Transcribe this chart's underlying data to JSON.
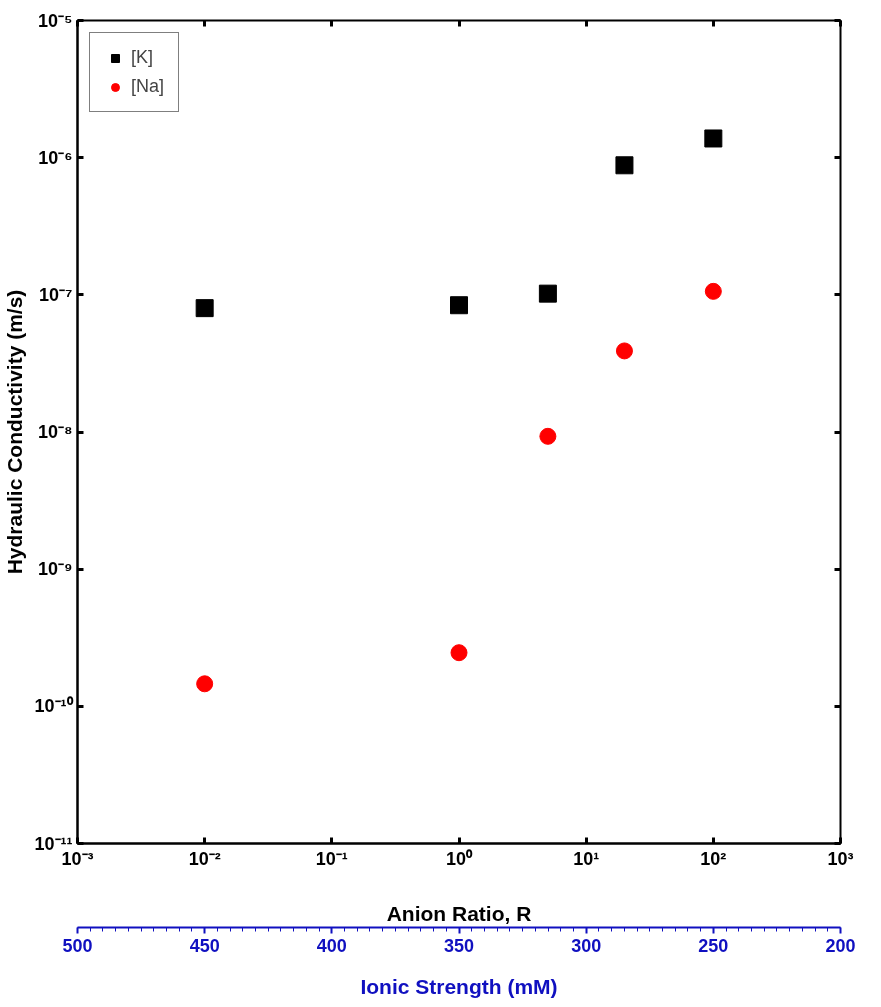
{
  "chart_data": {
    "type": "scatter",
    "xlabel": "Anion Ratio, R",
    "ylabel": "Hydraulic Conductivity (m/s)",
    "x2label": "Ionic Strength (mM)",
    "log": "xy",
    "grid": false,
    "legend": "top left",
    "xlim": [
      0.001,
      1000
    ],
    "ylim": [
      1e-11,
      1e-05
    ],
    "xticks": [
      {
        "value": 0.001,
        "label": "10⁻³"
      },
      {
        "value": 0.01,
        "label": "10⁻²"
      },
      {
        "value": 0.1,
        "label": "10⁻¹"
      },
      {
        "value": 1,
        "label": "10⁰"
      },
      {
        "value": 10,
        "label": "10¹"
      },
      {
        "value": 100,
        "label": "10²"
      },
      {
        "value": 1000,
        "label": "10³"
      }
    ],
    "yticks": [
      {
        "value": 1e-11,
        "label": "10⁻¹¹"
      },
      {
        "value": 1e-10,
        "label": "10⁻¹⁰"
      },
      {
        "value": 1e-09,
        "label": "10⁻⁹"
      },
      {
        "value": 1e-08,
        "label": "10⁻⁸"
      },
      {
        "value": 1e-07,
        "label": "10⁻⁷"
      },
      {
        "value": 1e-06,
        "label": "10⁻⁶"
      },
      {
        "value": 1e-05,
        "label": "10⁻⁵"
      }
    ],
    "x2lim": [
      500,
      200
    ],
    "x2ticks": [
      500,
      450,
      400,
      350,
      300,
      250,
      200
    ],
    "x": [
      0.01,
      1,
      5,
      20,
      100
    ],
    "series": [
      {
        "name": "[K]",
        "color": "#000000",
        "marker": "square",
        "values": [
          8e-08,
          8.4e-08,
          1.02e-07,
          8.8e-07,
          1.38e-06
        ]
      },
      {
        "name": "[Na]",
        "color": "#ff0000",
        "marker": "circle",
        "values": [
          1.46e-10,
          2.46e-10,
          9.3e-09,
          3.9e-08,
          1.06e-07
        ]
      }
    ]
  }
}
